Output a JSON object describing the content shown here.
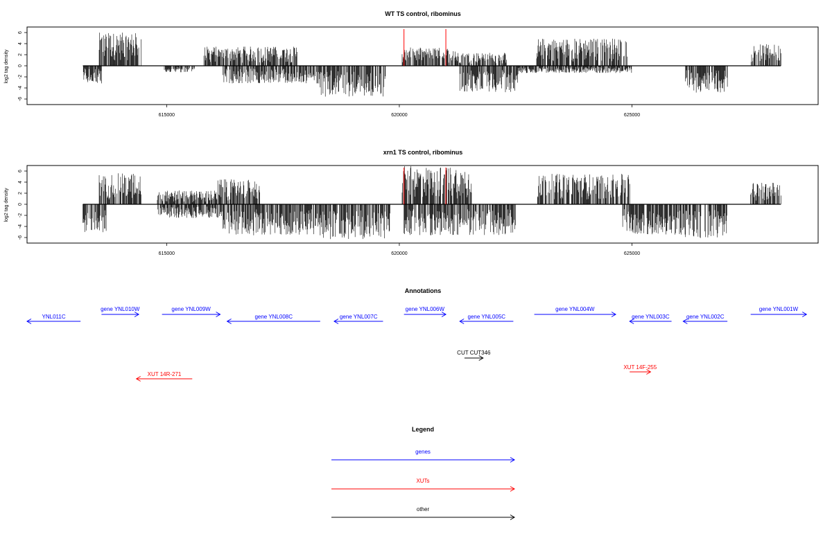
{
  "chart_data": [
    {
      "type": "bar",
      "title": "WT TS control, ribominus",
      "xlabel": "",
      "ylabel": "log2 tag density",
      "xlim": [
        612000,
        629000
      ],
      "ylim": [
        -7,
        7
      ],
      "yticks": [
        -6,
        -4,
        -2,
        0,
        2,
        4,
        6
      ],
      "xticks": [
        615000,
        620000,
        625000
      ],
      "xtick_labels": [
        "615000",
        "620000",
        "625000"
      ],
      "baseline": {
        "start": 613200,
        "end": 628200
      },
      "markers": [
        620100,
        621000
      ],
      "series": [
        {
          "strand": "plus",
          "segments": [
            {
              "start": 613550,
              "end": 614450,
              "peak": 6.0
            },
            {
              "start": 615800,
              "end": 617800,
              "peak": 3.5
            },
            {
              "start": 620050,
              "end": 621200,
              "peak": 3.3
            },
            {
              "start": 621200,
              "end": 622300,
              "peak": 2.4
            },
            {
              "start": 622950,
              "end": 624900,
              "peak": 5.0
            },
            {
              "start": 627550,
              "end": 628200,
              "peak": 3.9
            }
          ]
        },
        {
          "strand": "minus",
          "segments": [
            {
              "start": 613200,
              "end": 613600,
              "peak": -3.2
            },
            {
              "start": 614950,
              "end": 615600,
              "peak": -1.2
            },
            {
              "start": 616200,
              "end": 618300,
              "peak": -3.2
            },
            {
              "start": 618300,
              "end": 619700,
              "peak": -5.6
            },
            {
              "start": 621300,
              "end": 622550,
              "peak": -4.8
            },
            {
              "start": 622550,
              "end": 625000,
              "peak": -1.3
            },
            {
              "start": 626150,
              "end": 627050,
              "peak": -4.9
            }
          ]
        }
      ]
    },
    {
      "type": "bar",
      "title": "xrn1 TS control, ribominus",
      "xlabel": "",
      "ylabel": "log2 tag density",
      "xlim": [
        612000,
        629000
      ],
      "ylim": [
        -7,
        7
      ],
      "yticks": [
        -6,
        -4,
        -2,
        0,
        2,
        4,
        6
      ],
      "xticks": [
        615000,
        620000,
        625000
      ],
      "xtick_labels": [
        "615000",
        "620000",
        "625000"
      ],
      "baseline": {
        "start": 613200,
        "end": 628200
      },
      "markers": [
        620100,
        621000
      ],
      "series": [
        {
          "strand": "plus",
          "segments": [
            {
              "start": 613550,
              "end": 614450,
              "peak": 5.6
            },
            {
              "start": 614800,
              "end": 616100,
              "peak": 2.5
            },
            {
              "start": 616100,
              "end": 617000,
              "peak": 4.5
            },
            {
              "start": 620050,
              "end": 621550,
              "peak": 6.9
            },
            {
              "start": 622950,
              "end": 624950,
              "peak": 5.5
            },
            {
              "start": 627550,
              "end": 628200,
              "peak": 4.0
            }
          ]
        },
        {
          "strand": "minus",
          "segments": [
            {
              "start": 613200,
              "end": 613700,
              "peak": -5.2
            },
            {
              "start": 614800,
              "end": 616200,
              "peak": -2.5
            },
            {
              "start": 616200,
              "end": 618300,
              "peak": -5.6
            },
            {
              "start": 618300,
              "end": 619800,
              "peak": -6.3
            },
            {
              "start": 620100,
              "end": 622500,
              "peak": -5.6
            },
            {
              "start": 624800,
              "end": 626100,
              "peak": -5.5
            },
            {
              "start": 626100,
              "end": 627050,
              "peak": -6.2
            }
          ]
        }
      ]
    },
    {
      "type": "table",
      "title": "Annotations",
      "features": [
        {
          "label": "YNL011C",
          "start": 612000,
          "end": 613150,
          "direction": "left",
          "kind": "genes",
          "row": "minus"
        },
        {
          "label": "gene YNL010W",
          "start": 613600,
          "end": 614400,
          "direction": "right",
          "kind": "genes",
          "row": "plus"
        },
        {
          "label": "gene YNL009W",
          "start": 614900,
          "end": 616150,
          "direction": "right",
          "kind": "genes",
          "row": "plus"
        },
        {
          "label": "gene YNL008C",
          "start": 616300,
          "end": 618300,
          "direction": "left",
          "kind": "genes",
          "row": "minus"
        },
        {
          "label": "gene YNL007C",
          "start": 618600,
          "end": 619650,
          "direction": "left",
          "kind": "genes",
          "row": "minus"
        },
        {
          "label": "gene YNL006W",
          "start": 620100,
          "end": 621000,
          "direction": "right",
          "kind": "genes",
          "row": "plus"
        },
        {
          "label": "gene YNL005C",
          "start": 621300,
          "end": 622450,
          "direction": "left",
          "kind": "genes",
          "row": "minus"
        },
        {
          "label": "gene YNL004W",
          "start": 622900,
          "end": 624650,
          "direction": "right",
          "kind": "genes",
          "row": "plus"
        },
        {
          "label": "gene YNL003C",
          "start": 624950,
          "end": 625850,
          "direction": "left",
          "kind": "genes",
          "row": "minus"
        },
        {
          "label": "gene YNL002C",
          "start": 626100,
          "end": 627050,
          "direction": "left",
          "kind": "genes",
          "row": "minus"
        },
        {
          "label": "gene YNL001W",
          "start": 627550,
          "end": 628750,
          "direction": "right",
          "kind": "genes",
          "row": "plus"
        },
        {
          "label": "CUT CUT346",
          "start": 621400,
          "end": 621800,
          "direction": "right",
          "kind": "other",
          "row": "cut"
        },
        {
          "label": "XUT 14R-271",
          "start": 614350,
          "end": 615550,
          "direction": "left",
          "kind": "XUTs",
          "row": "xut-low"
        },
        {
          "label": "XUT 14F-255",
          "start": 624950,
          "end": 625400,
          "direction": "right",
          "kind": "XUTs",
          "row": "xut-high"
        }
      ]
    }
  ],
  "legend": {
    "title": "Legend",
    "items": [
      {
        "label": "genes",
        "color": "#0000ff"
      },
      {
        "label": "XUTs",
        "color": "#ff0000"
      },
      {
        "label": "other",
        "color": "#000000"
      }
    ]
  },
  "colors": {
    "genes": "#0000ff",
    "XUTs": "#ff0000",
    "other": "#000000",
    "marker": "#ff0000",
    "signal": "#000000"
  }
}
